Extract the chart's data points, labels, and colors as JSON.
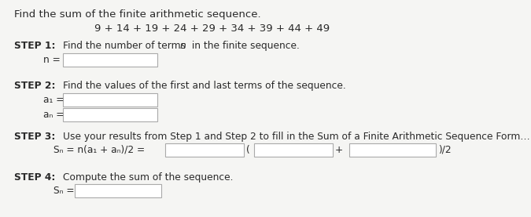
{
  "bg_color": "#f5f5f3",
  "title_line": "Find the sum of the finite arithmetic sequence.",
  "sequence_line": "9 + 14 + 19 + 24 + 29 + 34 + 39 + 44 + 49",
  "step1_bold": "STEP 1:",
  "step1_text": "Find the number of terms ",
  "step1_italic": "n",
  "step1_text2": " in the finite sequence.",
  "step1_label": "n =",
  "step2_bold": "STEP 2:",
  "step2_text": "Find the values of the first and last terms of the sequence.",
  "step2_label1": "a₁ =",
  "step2_label2": "aₙ =",
  "step3_bold": "STEP 3:",
  "step3_text": "Use your results from Step 1 and Step 2 to fill in the Sum of a Finite Arithmetic Sequence Form…",
  "step3_formula_left": "Sₙ = n(a₁ + aₙ)/2 =",
  "step3_plus": "+",
  "step3_div2": ")/2",
  "step4_bold": "STEP 4:",
  "step4_text": "Compute the sum of the sequence.",
  "step4_label": "Sₙ =",
  "box_facecolor": "#ffffff",
  "box_edgecolor": "#aaaaaa",
  "text_color": "#2a2a2a",
  "step_underline_color": "#2a2a2a"
}
